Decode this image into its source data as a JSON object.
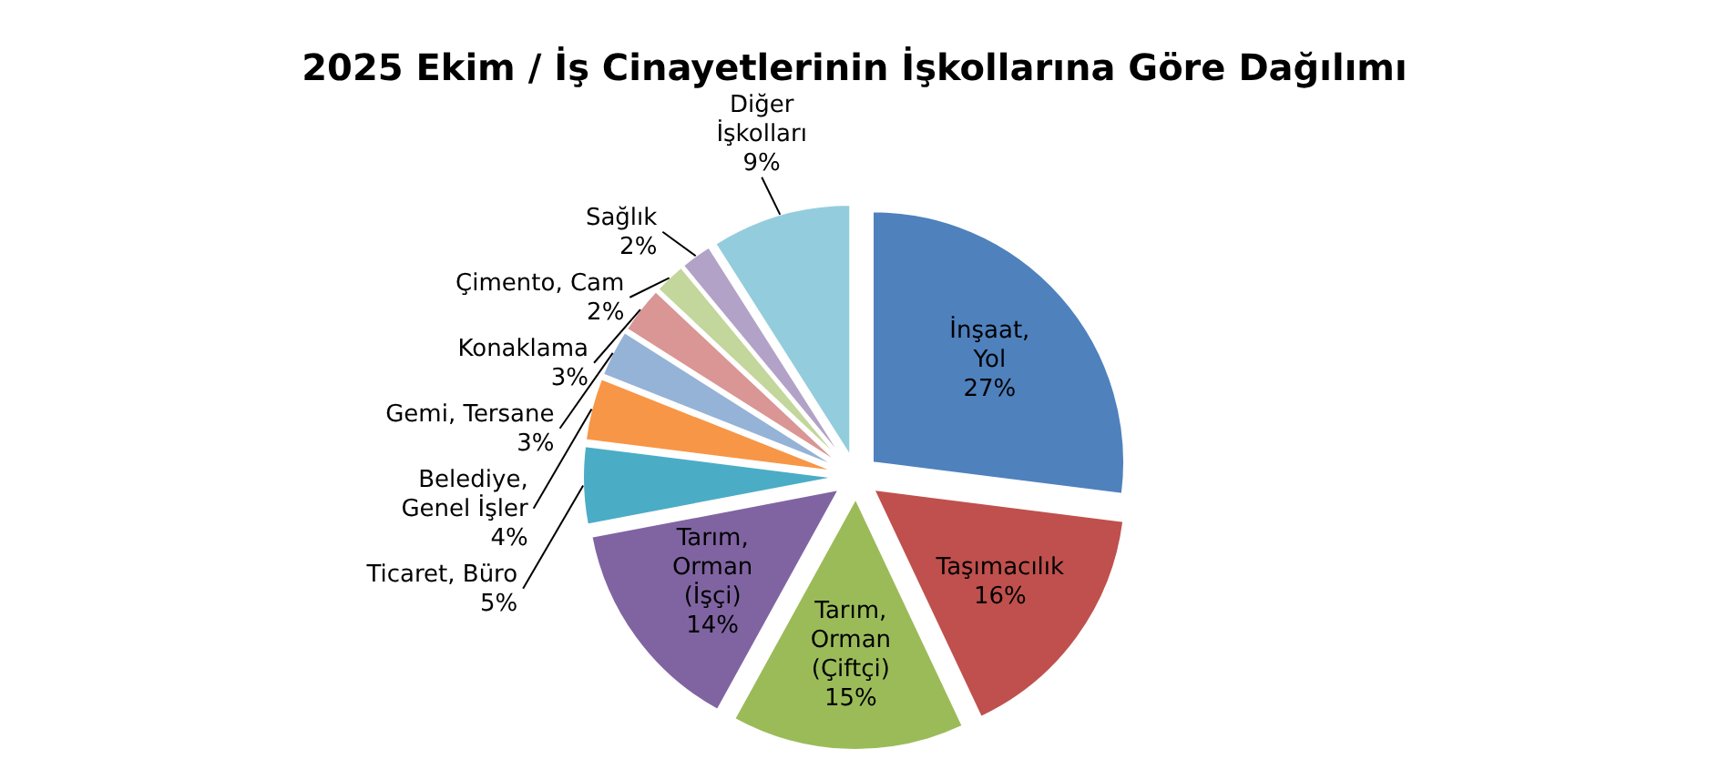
{
  "chart_data": {
    "type": "pie",
    "title": "2025 Ekim / İş Cinayetlerinin İşkollarına Göre Dağılımı",
    "categories": [
      "İnşaat, Yol",
      "Taşımacılık",
      "Tarım, Orman (Çiftçi)",
      "Tarım, Orman (İşçi)",
      "Ticaret, Büro",
      "Belediye, Genel İşler",
      "Gemi, Tersane",
      "Konaklama",
      "Çimento, Cam",
      "Sağlık",
      "Diğer İşkolları"
    ],
    "values": [
      27,
      16,
      15,
      14,
      5,
      4,
      3,
      3,
      2,
      2,
      9
    ],
    "colors": [
      "#4f81bd",
      "#c0504d",
      "#9bbb59",
      "#8064a2",
      "#4bacc6",
      "#f79646",
      "#95b3d7",
      "#d99694",
      "#c3d69b",
      "#b3a2c7",
      "#93cddd"
    ],
    "value_labels": [
      "27%",
      "16%",
      "15%",
      "14%",
      "5%",
      "4%",
      "3%",
      "3%",
      "2%",
      "2%",
      "9%"
    ]
  }
}
